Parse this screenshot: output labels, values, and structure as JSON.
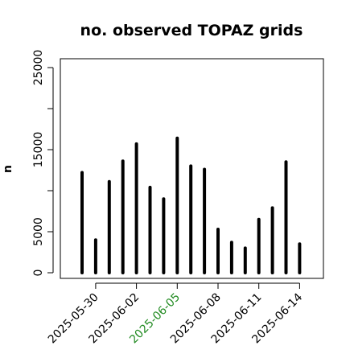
{
  "chart_data": {
    "type": "bar",
    "title": "no. observed TOPAZ grids",
    "xlabel": "",
    "ylabel": "n",
    "ylim": [
      0,
      26000
    ],
    "yticks": [
      0,
      5000,
      10000,
      15000,
      20000,
      25000
    ],
    "ytick_labels": [
      "0",
      "5000",
      "",
      "15000",
      "",
      "25000"
    ],
    "xticks": [
      {
        "date": "2025-05-30",
        "label": "2025-05-30",
        "color": "#000000"
      },
      {
        "date": "2025-06-02",
        "label": "2025-06-02",
        "color": "#000000"
      },
      {
        "date": "2025-06-05",
        "label": "2025-06-05",
        "color": "#228B22"
      },
      {
        "date": "2025-06-08",
        "label": "2025-06-08",
        "color": "#000000"
      },
      {
        "date": "2025-06-11",
        "label": "2025-06-11",
        "color": "#000000"
      },
      {
        "date": "2025-06-14",
        "label": "2025-06-14",
        "color": "#000000"
      }
    ],
    "x": [
      "2025-05-29",
      "2025-05-30",
      "2025-05-31",
      "2025-06-01",
      "2025-06-02",
      "2025-06-03",
      "2025-06-04",
      "2025-06-05",
      "2025-06-06",
      "2025-06-07",
      "2025-06-08",
      "2025-06-09",
      "2025-06-10",
      "2025-06-11",
      "2025-06-12",
      "2025-06-13",
      "2025-06-14"
    ],
    "values": [
      12200,
      4000,
      11100,
      13600,
      15700,
      10400,
      9000,
      16400,
      13000,
      12600,
      5300,
      3700,
      3000,
      6500,
      7900,
      13500,
      3500
    ],
    "grid": false,
    "bar_color": "#000000"
  }
}
